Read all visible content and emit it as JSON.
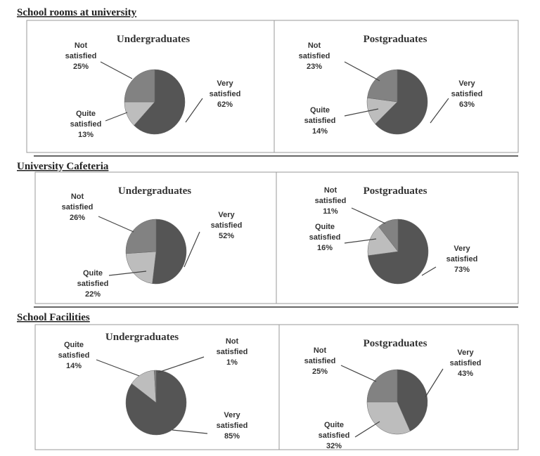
{
  "chart_data": [
    {
      "type": "pie",
      "section": "School rooms at university",
      "title": "Undergraduates",
      "slices": [
        {
          "label": "Very satisfied",
          "value": 62,
          "color": "#555555"
        },
        {
          "label": "Quite satisfied",
          "value": 13,
          "color": "#bdbdbd"
        },
        {
          "label": "Not satisfied",
          "value": 25,
          "color": "#828282"
        }
      ]
    },
    {
      "type": "pie",
      "section": "School rooms at university",
      "title": "Postgraduates",
      "slices": [
        {
          "label": "Very satisfied",
          "value": 63,
          "color": "#555555"
        },
        {
          "label": "Quite satisfied",
          "value": 14,
          "color": "#bdbdbd"
        },
        {
          "label": "Not satisfied",
          "value": 23,
          "color": "#828282"
        }
      ]
    },
    {
      "type": "pie",
      "section": "University Cafeteria",
      "title": "Undergraduates",
      "slices": [
        {
          "label": "Very satisfied",
          "value": 52,
          "color": "#555555"
        },
        {
          "label": "Quite satisfied",
          "value": 22,
          "color": "#bdbdbd"
        },
        {
          "label": "Not satisfied",
          "value": 26,
          "color": "#828282"
        }
      ]
    },
    {
      "type": "pie",
      "section": "University Cafeteria",
      "title": "Postgraduates",
      "slices": [
        {
          "label": "Very satisfied",
          "value": 73,
          "color": "#555555"
        },
        {
          "label": "Quite satisfied",
          "value": 16,
          "color": "#bdbdbd"
        },
        {
          "label": "Not satisfied",
          "value": 11,
          "color": "#828282"
        }
      ]
    },
    {
      "type": "pie",
      "section": "School Facilities",
      "title": "Undergraduates",
      "slices": [
        {
          "label": "Very satisfied",
          "value": 85,
          "color": "#555555"
        },
        {
          "label": "Quite satisfied",
          "value": 14,
          "color": "#bdbdbd"
        },
        {
          "label": "Not satisfied",
          "value": 1,
          "color": "#828282"
        }
      ]
    },
    {
      "type": "pie",
      "section": "School Facilities",
      "title": "Postgraduates",
      "slices": [
        {
          "label": "Very satisfied",
          "value": 43,
          "color": "#555555"
        },
        {
          "label": "Quite satisfied",
          "value": 32,
          "color": "#bdbdbd"
        },
        {
          "label": "Not satisfied",
          "value": 25,
          "color": "#828282"
        }
      ]
    }
  ],
  "sections": [
    "School rooms at university",
    "University Cafeteria",
    "School Facilities"
  ]
}
